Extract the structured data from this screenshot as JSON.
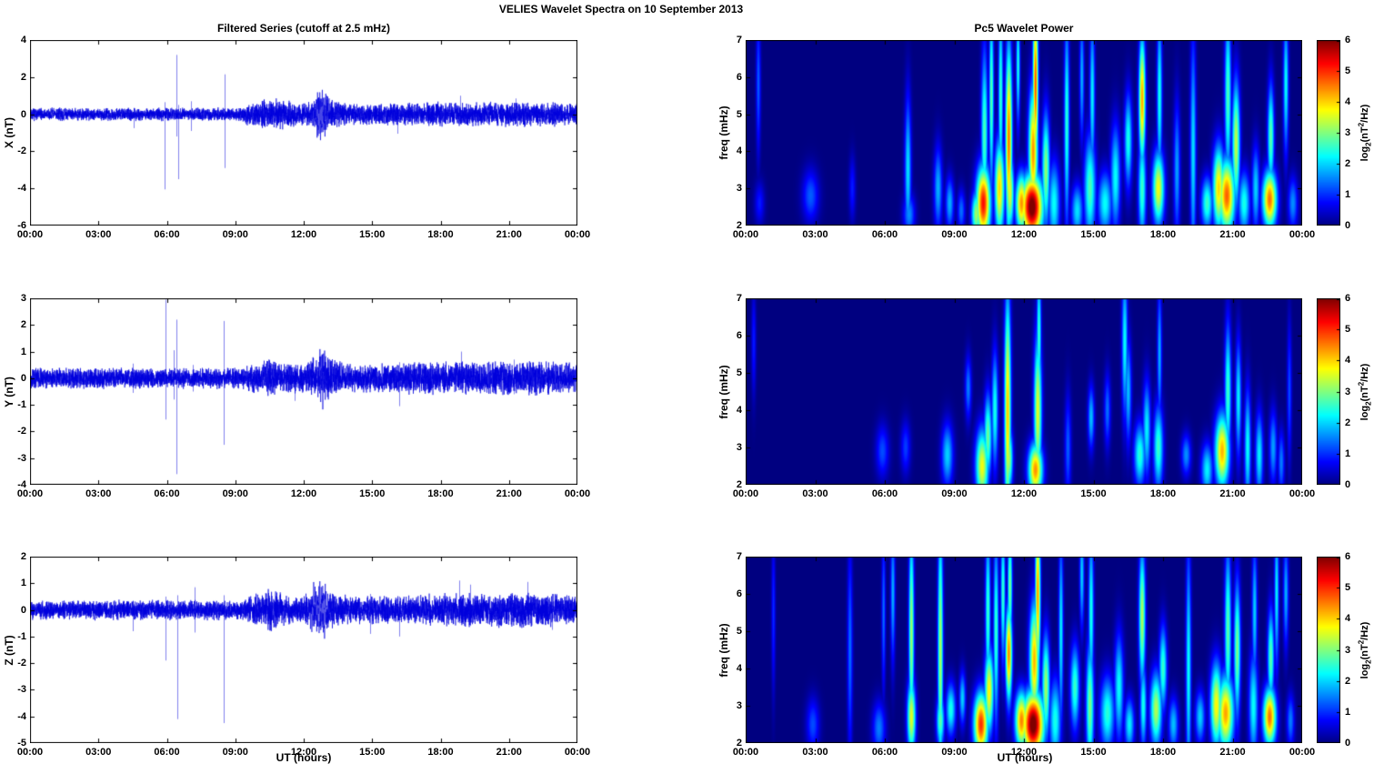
{
  "suptitle": "VELIES Wavelet Spectra on 10 September 2013",
  "titles": {
    "left": "Filtered Series (cutoff at 2.5 mHz)",
    "right": "Pc5 Wavelet Power"
  },
  "xlabel": "UT (hours)",
  "xaxis": {
    "range_hours": [
      0,
      24
    ],
    "tick_hours": [
      0,
      3,
      6,
      9,
      12,
      15,
      18,
      21,
      24
    ],
    "tick_labels": [
      "00:00",
      "03:00",
      "06:00",
      "09:00",
      "12:00",
      "15:00",
      "18:00",
      "21:00",
      "00:00"
    ]
  },
  "colors": {
    "line": "#0000dd",
    "axis": "#000000",
    "background": "#ffffff"
  },
  "colorbar": {
    "range": [
      0,
      6
    ],
    "ticks": [
      0,
      1,
      2,
      3,
      4,
      5,
      6
    ],
    "label": {
      "prefix": "log",
      "sub": "2",
      "mid": "(nT",
      "sup": "2",
      "suffix": "/Hz)"
    }
  },
  "chart_data": [
    {
      "id": "x-series",
      "type": "line",
      "col": "left",
      "row": 0,
      "title": "Filtered Series (cutoff at 2.5 mHz)",
      "ylabel": "X (nT)",
      "ylim": [
        -6,
        4
      ],
      "yticks": [
        4,
        2,
        0,
        -2,
        -4,
        -6
      ],
      "noise": {
        "seed": 7,
        "segments": [
          [
            0,
            9.3,
            0.38
          ],
          [
            9.3,
            24,
            0.6
          ]
        ],
        "bursts": [
          [
            10.5,
            0.35,
            0.35
          ],
          [
            11.2,
            0.3,
            0.25
          ],
          [
            12.9,
            0.5,
            0.3
          ],
          [
            17.5,
            2.0,
            0.08
          ],
          [
            21.5,
            2.0,
            0.1
          ]
        ]
      },
      "packets": [
        [
          12.75,
          0.22,
          0.85,
          20
        ]
      ],
      "spikes": [
        [
          4.55,
          0.3,
          -0.75
        ],
        [
          5.92,
          0.65,
          -4.05
        ],
        [
          6.42,
          3.2,
          -1.2
        ],
        [
          6.5,
          0.5,
          -3.5
        ],
        [
          7.05,
          0.7,
          -0.9
        ],
        [
          8.52,
          2.15,
          -2.9
        ],
        [
          16.1,
          0.5,
          -1.05
        ],
        [
          18.85,
          1.0,
          -0.5
        ],
        [
          21.3,
          0.85,
          -0.5
        ]
      ]
    },
    {
      "id": "y-series",
      "type": "line",
      "col": "left",
      "row": 1,
      "ylabel": "Y (nT)",
      "ylim": [
        -4,
        3
      ],
      "yticks": [
        3,
        2,
        1,
        0,
        -1,
        -2,
        -3,
        -4
      ],
      "noise": {
        "seed": 13,
        "segments": [
          [
            0,
            9.5,
            0.42
          ],
          [
            9.5,
            24,
            0.55
          ]
        ],
        "bursts": [
          [
            10.6,
            0.5,
            0.2
          ],
          [
            12.8,
            0.5,
            0.3
          ],
          [
            17.8,
            1.5,
            0.12
          ],
          [
            21.8,
            1.5,
            0.15
          ]
        ]
      },
      "packets": [
        [
          12.8,
          0.2,
          0.5,
          20
        ]
      ],
      "spikes": [
        [
          4.5,
          0.55,
          -0.55
        ],
        [
          5.95,
          2.95,
          -1.55
        ],
        [
          6.3,
          1.05,
          -0.8
        ],
        [
          6.42,
          2.2,
          -3.6
        ],
        [
          7.15,
          0.5,
          -0.5
        ],
        [
          8.5,
          2.15,
          -2.5
        ],
        [
          11.6,
          0.4,
          -0.85
        ],
        [
          16.2,
          0.6,
          -1.05
        ],
        [
          18.9,
          1.0,
          -0.4
        ],
        [
          21.2,
          0.7,
          -0.6
        ]
      ]
    },
    {
      "id": "z-series",
      "type": "line",
      "col": "left",
      "row": 2,
      "ylabel": "Z (nT)",
      "ylim": [
        -5,
        2
      ],
      "yticks": [
        2,
        1,
        0,
        -1,
        -2,
        -3,
        -4,
        -5
      ],
      "noise": {
        "seed": 21,
        "segments": [
          [
            0,
            9.5,
            0.4
          ],
          [
            9.5,
            24,
            0.55
          ]
        ],
        "bursts": [
          [
            10.5,
            0.4,
            0.3
          ],
          [
            12.9,
            0.5,
            0.25
          ],
          [
            18.9,
            1.5,
            0.12
          ],
          [
            21.9,
            1.2,
            0.15
          ]
        ]
      },
      "packets": [
        [
          12.7,
          0.25,
          0.65,
          18
        ]
      ],
      "spikes": [
        [
          4.5,
          0.35,
          -0.8
        ],
        [
          5.95,
          0.5,
          -1.9
        ],
        [
          6.45,
          0.55,
          -4.1
        ],
        [
          7.2,
          0.85,
          -0.85
        ],
        [
          8.5,
          0.55,
          -4.25
        ],
        [
          14.9,
          0.6,
          -0.9
        ],
        [
          16.2,
          0.5,
          -1.0
        ],
        [
          18.8,
          1.1,
          -0.5
        ],
        [
          19.3,
          0.95,
          -0.6
        ],
        [
          21.8,
          1.05,
          -0.55
        ],
        [
          22.9,
          0.6,
          -0.75
        ]
      ]
    },
    {
      "id": "x-wavelet",
      "type": "heatmap",
      "col": "right",
      "row": 0,
      "title": "Pc5 Wavelet Power",
      "ylabel": "freq (mHz)",
      "ylim": [
        2,
        7
      ],
      "yticks": [
        2,
        3,
        4,
        5,
        6,
        7
      ],
      "clim": [
        0,
        6
      ],
      "blobs": [
        [
          0.55,
          5.8,
          0.07,
          1.3,
          1.3
        ],
        [
          0.6,
          2.6,
          0.15,
          0.4,
          0.9
        ],
        [
          2.8,
          2.8,
          0.25,
          0.5,
          1.3
        ],
        [
          4.6,
          3.0,
          0.1,
          0.6,
          0.9
        ],
        [
          7.0,
          3.5,
          0.1,
          1.4,
          2.1
        ],
        [
          7.05,
          2.3,
          0.18,
          0.4,
          1.6
        ],
        [
          8.3,
          3.0,
          0.13,
          0.8,
          1.8
        ],
        [
          8.8,
          2.6,
          0.13,
          0.5,
          1.8
        ],
        [
          9.3,
          2.4,
          0.12,
          0.4,
          1.4
        ],
        [
          9.95,
          2.3,
          0.15,
          0.45,
          3.2
        ],
        [
          10.25,
          2.6,
          0.22,
          0.7,
          5.2
        ],
        [
          10.3,
          4.5,
          0.1,
          1.6,
          2.7
        ],
        [
          10.6,
          5.5,
          0.07,
          1.8,
          2.8
        ],
        [
          10.95,
          3.0,
          0.15,
          0.9,
          4.0
        ],
        [
          11.0,
          5.5,
          0.07,
          1.8,
          2.6
        ],
        [
          11.35,
          4.3,
          0.1,
          1.8,
          4.6
        ],
        [
          11.4,
          2.9,
          0.12,
          0.7,
          3.6
        ],
        [
          11.75,
          6.3,
          0.06,
          1.1,
          2.4
        ],
        [
          11.9,
          2.6,
          0.18,
          0.55,
          4.4
        ],
        [
          12.35,
          2.5,
          0.33,
          0.6,
          6.3
        ],
        [
          12.4,
          4.0,
          0.14,
          1.2,
          4.4
        ],
        [
          12.5,
          5.8,
          0.08,
          1.6,
          4.8
        ],
        [
          12.95,
          3.5,
          0.12,
          1.1,
          3.1
        ],
        [
          13.3,
          2.6,
          0.18,
          0.8,
          2.3
        ],
        [
          13.85,
          4.8,
          0.08,
          2.0,
          2.5
        ],
        [
          14.3,
          2.4,
          0.18,
          0.5,
          2.1
        ],
        [
          14.5,
          6.0,
          0.07,
          1.2,
          1.8
        ],
        [
          14.85,
          3.0,
          0.18,
          1.0,
          2.7
        ],
        [
          14.95,
          5.5,
          0.08,
          1.5,
          2.2
        ],
        [
          15.5,
          2.6,
          0.22,
          0.6,
          2.3
        ],
        [
          15.95,
          3.3,
          0.15,
          1.0,
          2.3
        ],
        [
          16.5,
          4.3,
          0.12,
          0.9,
          2.4
        ],
        [
          17.1,
          5.4,
          0.1,
          1.2,
          4.3
        ],
        [
          17.1,
          3.0,
          0.12,
          1.0,
          2.6
        ],
        [
          17.8,
          3.0,
          0.18,
          0.7,
          3.7
        ],
        [
          17.85,
          5.5,
          0.08,
          1.6,
          2.4
        ],
        [
          18.6,
          3.5,
          0.1,
          1.3,
          1.7
        ],
        [
          19.3,
          4.0,
          0.09,
          2.2,
          2.1
        ],
        [
          19.9,
          2.6,
          0.18,
          0.5,
          2.6
        ],
        [
          20.4,
          3.0,
          0.18,
          0.8,
          4.0
        ],
        [
          20.75,
          2.8,
          0.25,
          0.7,
          4.7
        ],
        [
          20.8,
          5.5,
          0.1,
          1.6,
          2.7
        ],
        [
          21.15,
          4.2,
          0.12,
          1.2,
          3.4
        ],
        [
          21.5,
          2.6,
          0.18,
          0.6,
          2.4
        ],
        [
          22.0,
          3.0,
          0.12,
          0.8,
          2.0
        ],
        [
          22.6,
          2.7,
          0.22,
          0.55,
          4.6
        ],
        [
          22.65,
          4.4,
          0.1,
          1.0,
          2.8
        ],
        [
          23.3,
          5.8,
          0.08,
          1.3,
          2.3
        ],
        [
          23.6,
          2.6,
          0.15,
          0.5,
          1.6
        ]
      ]
    },
    {
      "id": "y-wavelet",
      "type": "heatmap",
      "col": "right",
      "row": 1,
      "ylabel": "freq (mHz)",
      "ylim": [
        2,
        7
      ],
      "yticks": [
        2,
        3,
        4,
        5,
        6,
        7
      ],
      "clim": [
        0,
        6
      ],
      "blobs": [
        [
          0.35,
          5.8,
          0.07,
          1.0,
          0.9
        ],
        [
          5.9,
          2.9,
          0.2,
          0.5,
          1.2
        ],
        [
          6.9,
          3.0,
          0.15,
          0.5,
          1.1
        ],
        [
          8.7,
          2.8,
          0.18,
          0.6,
          2.0
        ],
        [
          9.6,
          4.6,
          0.1,
          0.6,
          1.5
        ],
        [
          10.2,
          2.5,
          0.2,
          0.7,
          3.7
        ],
        [
          10.45,
          3.3,
          0.12,
          0.8,
          2.9
        ],
        [
          10.75,
          4.0,
          0.1,
          1.1,
          2.4
        ],
        [
          11.3,
          4.0,
          0.1,
          2.2,
          4.1
        ],
        [
          11.35,
          2.7,
          0.12,
          0.6,
          3.3
        ],
        [
          12.5,
          2.4,
          0.22,
          0.5,
          4.4
        ],
        [
          12.6,
          4.0,
          0.12,
          1.4,
          3.6
        ],
        [
          12.65,
          6.0,
          0.07,
          1.3,
          2.6
        ],
        [
          13.9,
          3.0,
          0.1,
          1.0,
          1.3
        ],
        [
          14.9,
          3.8,
          0.1,
          0.6,
          1.9
        ],
        [
          15.6,
          4.0,
          0.1,
          0.7,
          1.4
        ],
        [
          16.35,
          5.8,
          0.09,
          1.4,
          2.3
        ],
        [
          16.5,
          4.5,
          0.1,
          1.0,
          1.9
        ],
        [
          17.0,
          2.8,
          0.18,
          0.6,
          2.5
        ],
        [
          17.3,
          3.5,
          0.12,
          0.9,
          2.2
        ],
        [
          17.8,
          3.0,
          0.15,
          0.8,
          2.6
        ],
        [
          17.85,
          5.5,
          0.07,
          1.3,
          1.8
        ],
        [
          19.0,
          2.8,
          0.15,
          0.4,
          1.6
        ],
        [
          19.9,
          2.4,
          0.18,
          0.5,
          2.2
        ],
        [
          20.55,
          2.9,
          0.22,
          0.7,
          4.2
        ],
        [
          20.8,
          4.5,
          0.1,
          1.3,
          2.6
        ],
        [
          21.25,
          4.3,
          0.09,
          1.1,
          2.2
        ],
        [
          21.65,
          3.0,
          0.1,
          1.1,
          2.3
        ],
        [
          22.15,
          2.8,
          0.12,
          0.8,
          2.2
        ],
        [
          22.75,
          3.0,
          0.12,
          0.7,
          1.7
        ],
        [
          23.1,
          2.6,
          0.1,
          0.6,
          1.5
        ],
        [
          23.45,
          4.5,
          0.07,
          1.3,
          1.2
        ]
      ]
    },
    {
      "id": "z-wavelet",
      "type": "heatmap",
      "col": "right",
      "row": 2,
      "ylabel": "freq (mHz)",
      "ylim": [
        2,
        7
      ],
      "yticks": [
        2,
        3,
        4,
        5,
        6,
        7
      ],
      "clim": [
        0,
        6
      ],
      "blobs": [
        [
          1.2,
          5.5,
          0.06,
          1.5,
          1.0
        ],
        [
          2.9,
          2.5,
          0.2,
          0.5,
          1.2
        ],
        [
          4.5,
          4.5,
          0.08,
          2.0,
          1.4
        ],
        [
          5.75,
          2.4,
          0.2,
          0.5,
          1.5
        ],
        [
          5.95,
          5.5,
          0.06,
          1.5,
          1.4
        ],
        [
          6.35,
          6.0,
          0.07,
          1.3,
          1.8
        ],
        [
          7.15,
          2.7,
          0.13,
          0.7,
          3.6
        ],
        [
          7.15,
          5.0,
          0.08,
          2.0,
          3.2
        ],
        [
          8.4,
          4.5,
          0.08,
          2.5,
          3.3
        ],
        [
          8.4,
          2.6,
          0.12,
          0.5,
          2.8
        ],
        [
          8.85,
          2.9,
          0.15,
          0.5,
          2.4
        ],
        [
          9.35,
          3.2,
          0.1,
          0.5,
          2.0
        ],
        [
          10.15,
          2.5,
          0.22,
          0.6,
          5.0
        ],
        [
          10.5,
          3.4,
          0.14,
          0.8,
          3.8
        ],
        [
          10.45,
          5.5,
          0.08,
          1.6,
          2.6
        ],
        [
          10.8,
          5.0,
          0.08,
          1.8,
          2.6
        ],
        [
          11.1,
          6.0,
          0.07,
          1.3,
          2.6
        ],
        [
          11.35,
          4.4,
          0.1,
          0.9,
          4.5
        ],
        [
          11.4,
          6.2,
          0.07,
          1.1,
          3.0
        ],
        [
          11.9,
          2.6,
          0.2,
          0.55,
          4.5
        ],
        [
          12.4,
          2.5,
          0.33,
          0.6,
          6.3
        ],
        [
          12.45,
          4.2,
          0.15,
          1.1,
          4.2
        ],
        [
          12.6,
          6.0,
          0.08,
          1.5,
          4.4
        ],
        [
          12.95,
          3.5,
          0.12,
          1.0,
          3.2
        ],
        [
          13.35,
          2.6,
          0.18,
          0.8,
          2.4
        ],
        [
          13.6,
          5.0,
          0.07,
          1.8,
          2.2
        ],
        [
          14.2,
          3.5,
          0.14,
          0.8,
          2.6
        ],
        [
          14.5,
          6.5,
          0.07,
          1.0,
          2.0
        ],
        [
          14.85,
          3.0,
          0.12,
          1.2,
          3.0
        ],
        [
          14.9,
          5.5,
          0.08,
          1.6,
          2.4
        ],
        [
          15.6,
          2.8,
          0.22,
          0.7,
          2.5
        ],
        [
          16.1,
          3.5,
          0.14,
          1.0,
          2.3
        ],
        [
          16.55,
          2.5,
          0.15,
          0.5,
          2.2
        ],
        [
          17.1,
          5.4,
          0.1,
          1.3,
          3.3
        ],
        [
          17.15,
          3.0,
          0.1,
          0.8,
          2.4
        ],
        [
          17.7,
          2.9,
          0.18,
          0.7,
          3.3
        ],
        [
          18.0,
          4.0,
          0.12,
          0.8,
          2.6
        ],
        [
          18.45,
          2.5,
          0.15,
          0.5,
          1.9
        ],
        [
          19.1,
          4.0,
          0.08,
          2.3,
          2.3
        ],
        [
          19.6,
          2.7,
          0.15,
          0.5,
          2.0
        ],
        [
          20.3,
          3.0,
          0.18,
          0.8,
          3.8
        ],
        [
          20.7,
          2.8,
          0.25,
          0.7,
          4.3
        ],
        [
          20.8,
          5.0,
          0.1,
          1.6,
          2.8
        ],
        [
          21.2,
          4.5,
          0.1,
          1.3,
          3.0
        ],
        [
          21.9,
          3.0,
          0.14,
          1.0,
          2.3
        ],
        [
          21.95,
          5.5,
          0.08,
          1.3,
          2.0
        ],
        [
          22.6,
          2.7,
          0.2,
          0.55,
          4.6
        ],
        [
          22.65,
          4.3,
          0.1,
          0.9,
          2.8
        ],
        [
          22.9,
          6.0,
          0.07,
          1.4,
          2.2
        ],
        [
          23.3,
          6.0,
          0.08,
          1.0,
          1.8
        ],
        [
          23.5,
          2.6,
          0.12,
          0.5,
          1.5
        ]
      ]
    }
  ]
}
